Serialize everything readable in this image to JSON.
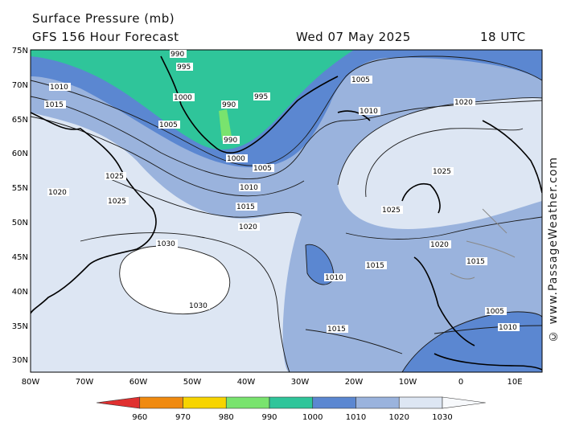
{
  "header": {
    "title": "Surface Pressure (mb)",
    "model": "GFS 156 Hour Forecast",
    "date": "Wed 07 May 2025",
    "time": "18 UTC"
  },
  "watermark": "© www.PassageWeather.com",
  "axes": {
    "lat_labels": [
      "75N",
      "70N",
      "65N",
      "60N",
      "55N",
      "50N",
      "45N",
      "40N",
      "35N",
      "30N"
    ],
    "lon_labels": [
      "80W",
      "70W",
      "60W",
      "50W",
      "40W",
      "30W",
      "20W",
      "10W",
      "0",
      "10E"
    ]
  },
  "colorbar": {
    "ticks": [
      "960",
      "970",
      "980",
      "990",
      "1000",
      "1010",
      "1020",
      "1030"
    ],
    "colors": [
      "#e03030",
      "#f08a10",
      "#f7d400",
      "#79e36e",
      "#2fc59a",
      "#5b87d1",
      "#9ab3dd",
      "#dde6f3",
      "#f7f9fc"
    ]
  },
  "map_colors": {
    "band_1020_1030": "#dde6f3",
    "band_1010_1020": "#9ab3dd",
    "band_1000_1010": "#5b87d1",
    "band_990_1000": "#2fc59a",
    "band_980_990": "#79e36e",
    "high_above_1030": "#ffffff"
  },
  "isobar_labels": [
    {
      "text": "990"
    },
    {
      "text": "995"
    },
    {
      "text": "1000"
    },
    {
      "text": "1005"
    },
    {
      "text": "1010"
    },
    {
      "text": "1015"
    },
    {
      "text": "1020"
    },
    {
      "text": "1025"
    },
    {
      "text": "1030"
    },
    {
      "text": "990"
    },
    {
      "text": "995"
    },
    {
      "text": "990"
    },
    {
      "text": "1000"
    },
    {
      "text": "1005"
    },
    {
      "text": "1010"
    },
    {
      "text": "1015"
    },
    {
      "text": "1020"
    },
    {
      "text": "1025"
    },
    {
      "text": "1030"
    },
    {
      "text": "1025"
    },
    {
      "text": "1020"
    },
    {
      "text": "1015"
    },
    {
      "text": "1010"
    },
    {
      "text": "1005"
    },
    {
      "text": "1010"
    },
    {
      "text": "1015"
    },
    {
      "text": "1020"
    },
    {
      "text": "1025"
    },
    {
      "text": "1015"
    },
    {
      "text": "1010"
    },
    {
      "text": "1005"
    }
  ]
}
